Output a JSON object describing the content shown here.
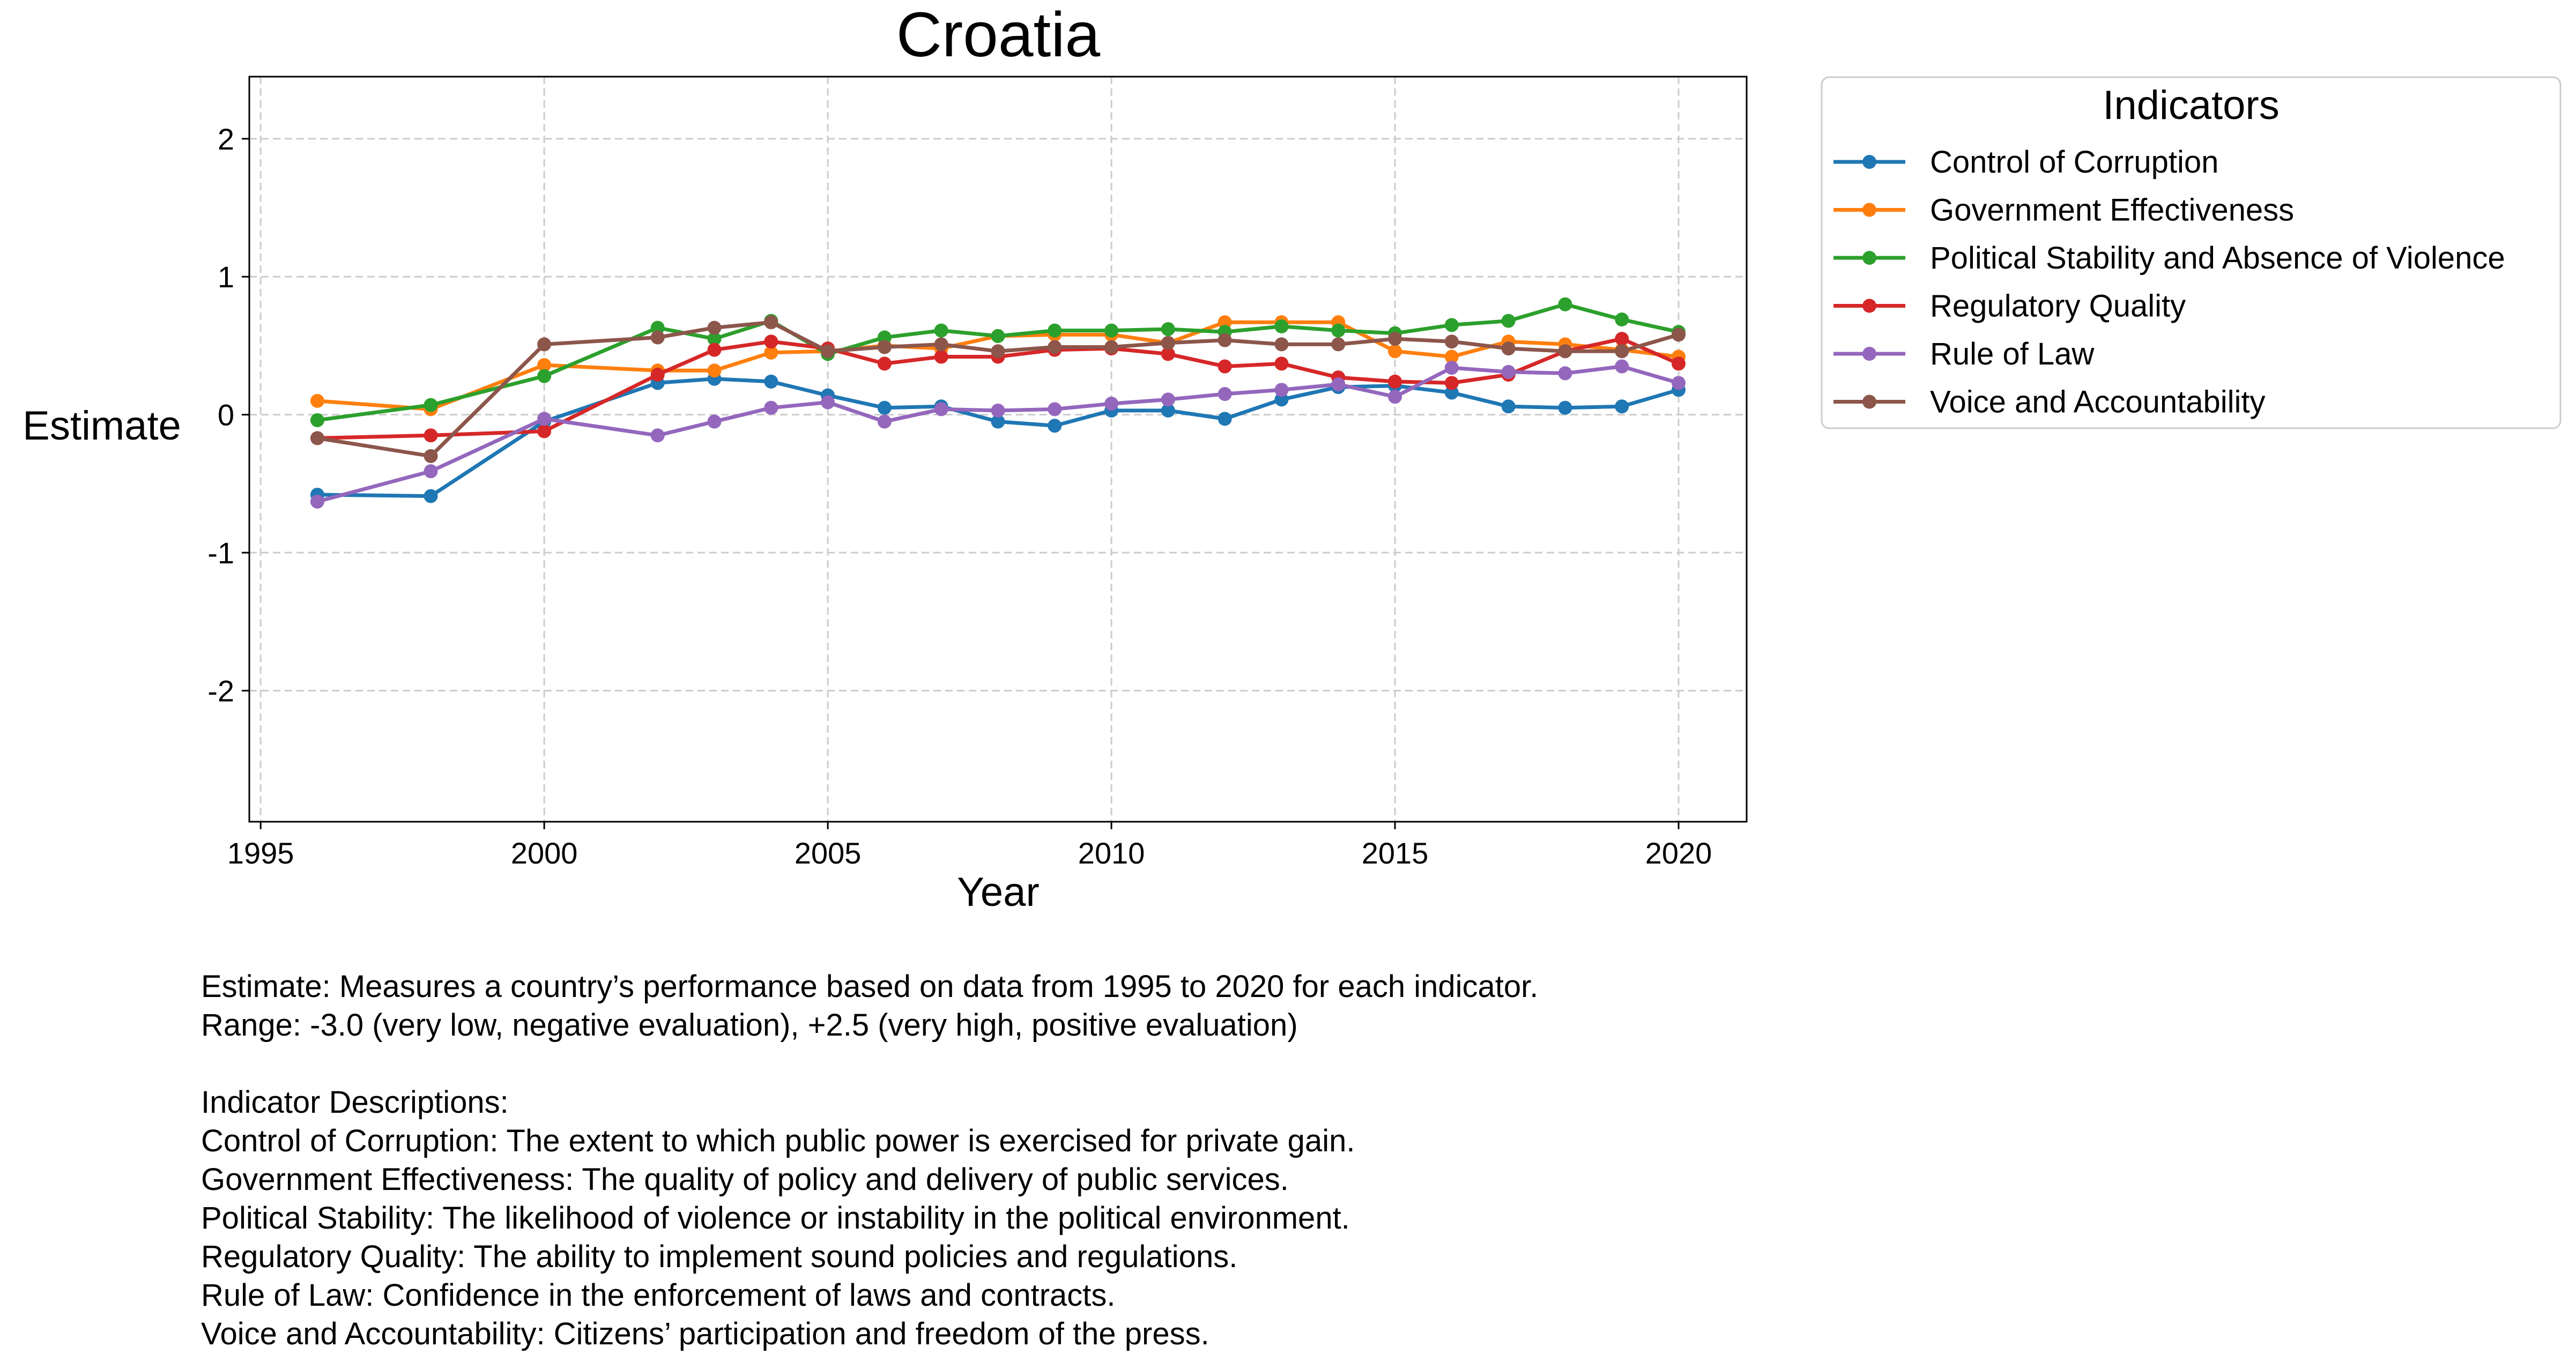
{
  "chart_data": {
    "type": "line",
    "title": "Croatia",
    "xlabel": "Year",
    "ylabel": "Estimate",
    "xlim": [
      1994.8,
      2021.2
    ],
    "ylim": [
      -2.95,
      2.45
    ],
    "xticks": [
      1995,
      2000,
      2005,
      2010,
      2015,
      2020
    ],
    "yticks": [
      -2,
      -1,
      0,
      1,
      2
    ],
    "grid": true,
    "legend_title": "Indicators",
    "legend_position": "outside-top-right",
    "x": [
      1996,
      1998,
      2000,
      2002,
      2003,
      2004,
      2005,
      2006,
      2007,
      2008,
      2009,
      2010,
      2011,
      2012,
      2013,
      2014,
      2015,
      2016,
      2017,
      2018,
      2019,
      2020
    ],
    "series": [
      {
        "name": "Control of Corruption",
        "color": "#1f77b4",
        "values": [
          -0.58,
          -0.59,
          -0.05,
          0.23,
          0.26,
          0.24,
          0.14,
          0.05,
          0.06,
          -0.05,
          -0.08,
          0.03,
          0.03,
          -0.03,
          0.11,
          0.2,
          0.21,
          0.16,
          0.06,
          0.05,
          0.06,
          0.18
        ]
      },
      {
        "name": "Government Effectiveness",
        "color": "#ff7f0e",
        "values": [
          0.1,
          0.04,
          0.36,
          0.32,
          0.32,
          0.45,
          0.46,
          0.5,
          0.48,
          0.57,
          0.58,
          0.58,
          0.52,
          0.67,
          0.67,
          0.67,
          0.46,
          0.42,
          0.53,
          0.51,
          0.47,
          0.42
        ]
      },
      {
        "name": "Political Stability and Absence of Violence",
        "color": "#2ca02c",
        "values": [
          -0.04,
          0.07,
          0.28,
          0.63,
          0.55,
          0.68,
          0.44,
          0.56,
          0.61,
          0.57,
          0.61,
          0.61,
          0.62,
          0.6,
          0.64,
          0.61,
          0.59,
          0.65,
          0.68,
          0.8,
          0.69,
          0.6
        ]
      },
      {
        "name": "Regulatory Quality",
        "color": "#d62728",
        "values": [
          -0.17,
          -0.15,
          -0.12,
          0.29,
          0.47,
          0.53,
          0.48,
          0.37,
          0.42,
          0.42,
          0.47,
          0.48,
          0.44,
          0.35,
          0.37,
          0.27,
          0.24,
          0.23,
          0.29,
          0.46,
          0.55,
          0.37
        ]
      },
      {
        "name": "Rule of Law",
        "color": "#9467bd",
        "values": [
          -0.63,
          -0.41,
          -0.03,
          -0.15,
          -0.05,
          0.05,
          0.09,
          -0.05,
          0.04,
          0.03,
          0.04,
          0.08,
          0.11,
          0.15,
          0.18,
          0.22,
          0.13,
          0.34,
          0.31,
          0.3,
          0.35,
          0.23
        ]
      },
      {
        "name": "Voice and Accountability",
        "color": "#8c564b",
        "values": [
          -0.17,
          -0.3,
          0.51,
          0.56,
          0.63,
          0.67,
          0.46,
          0.49,
          0.51,
          0.46,
          0.49,
          0.49,
          0.52,
          0.54,
          0.51,
          0.51,
          0.55,
          0.53,
          0.48,
          0.46,
          0.46,
          0.58
        ]
      }
    ]
  },
  "notes": {
    "line1": "Estimate: Measures a country’s performance based on data from 1995 to 2020 for each indicator.",
    "line2": "Range: -3.0 (very low, negative evaluation), +2.5 (very high, positive evaluation)",
    "line3": "Indicator Descriptions:",
    "line4": "Control of Corruption: The extent to which public power is exercised for private gain.",
    "line5": "Government Effectiveness: The quality of policy and delivery of public services.",
    "line6": "Political Stability: The likelihood of violence or instability in the political environment.",
    "line7": "Regulatory Quality: The ability to implement sound policies and regulations.",
    "line8": "Rule of Law: Confidence in the enforcement of laws and contracts.",
    "line9": "Voice and Accountability: Citizens’ participation and freedom of the press."
  }
}
